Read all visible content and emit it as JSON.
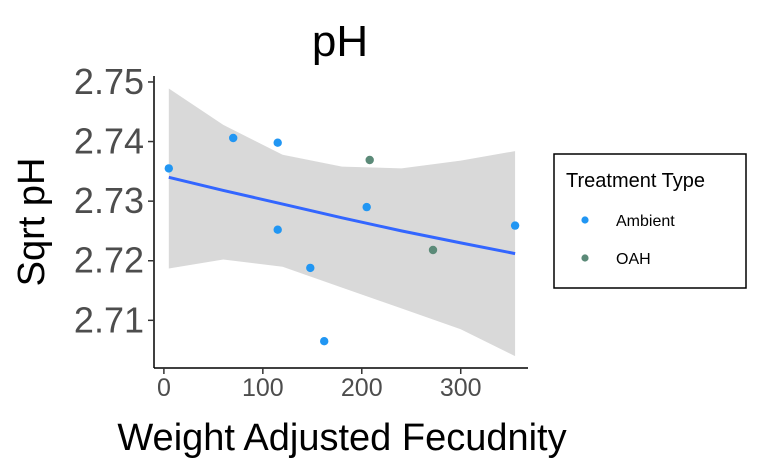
{
  "chart_data": {
    "type": "scatter",
    "title": "pH",
    "xlabel": "Weight Adjusted Fecudnity",
    "ylabel": "Sqrt pH",
    "xlim": [
      -10,
      368
    ],
    "ylim": [
      2.702,
      2.751
    ],
    "x_ticks": [
      0,
      100,
      200,
      300
    ],
    "x_tick_labels": [
      "0",
      "100",
      "200",
      "300"
    ],
    "y_ticks": [
      2.71,
      2.72,
      2.73,
      2.74,
      2.75
    ],
    "y_tick_labels": [
      "2.71",
      "2.72",
      "2.73",
      "2.74",
      "2.75"
    ],
    "grid": false,
    "legend": {
      "title": "Treatment Type",
      "placement": "right",
      "entries": [
        {
          "label": "Ambient",
          "color": "#2196f3"
        },
        {
          "label": "OAH",
          "color": "#5b8a78"
        }
      ]
    },
    "series": [
      {
        "name": "Ambient",
        "color": "#2196f3",
        "points": [
          {
            "x": 5,
            "y": 2.7355
          },
          {
            "x": 70,
            "y": 2.7406
          },
          {
            "x": 115,
            "y": 2.7398
          },
          {
            "x": 115,
            "y": 2.7252
          },
          {
            "x": 148,
            "y": 2.7188
          },
          {
            "x": 162,
            "y": 2.7065
          },
          {
            "x": 205,
            "y": 2.729
          },
          {
            "x": 355,
            "y": 2.7259
          }
        ]
      },
      {
        "name": "OAH",
        "color": "#5b8a78",
        "points": [
          {
            "x": 208,
            "y": 2.7369
          },
          {
            "x": 272,
            "y": 2.7218
          }
        ]
      }
    ],
    "trend_line": {
      "type": "linear",
      "color": "#3366ff",
      "band_color": "#d9d9d9",
      "x": [
        5,
        60,
        120,
        180,
        240,
        300,
        355
      ],
      "fit": [
        2.734,
        2.7318,
        2.7295,
        2.7272,
        2.725,
        2.723,
        2.7212
      ],
      "lower": [
        2.7187,
        2.7202,
        2.719,
        2.7155,
        2.712,
        2.7085,
        2.704
      ],
      "upper": [
        2.7489,
        2.7428,
        2.7378,
        2.7358,
        2.7355,
        2.7368,
        2.7384
      ]
    }
  }
}
